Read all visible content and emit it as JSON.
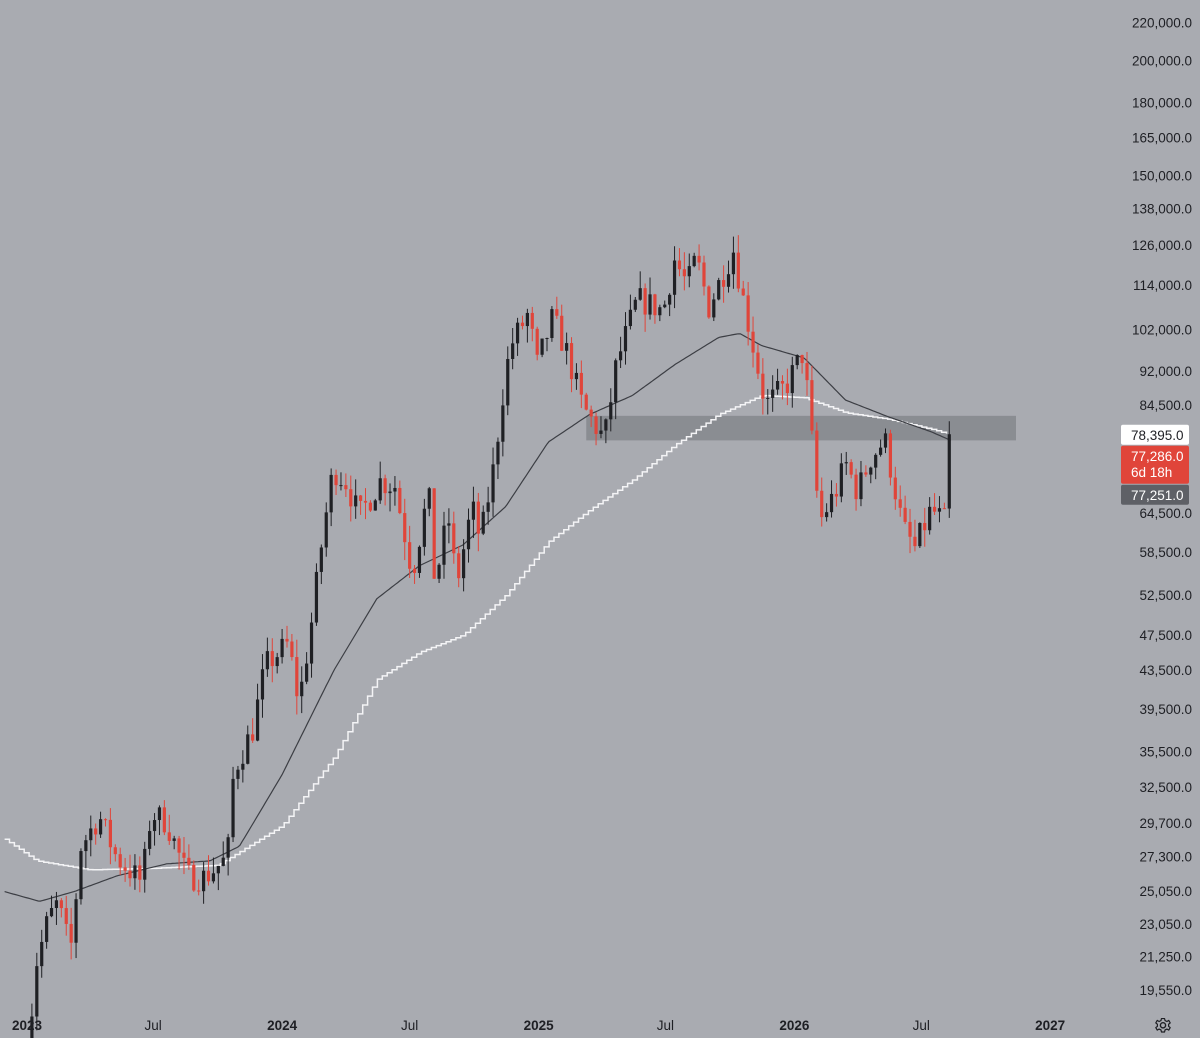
{
  "colors": {
    "background": "#a9abb1",
    "up": "#1f2024",
    "down": "#e0453a",
    "ma_fast": "#3c3e44",
    "ma_slow": "#f4f4f6",
    "zone": "#85878d",
    "tick_text": "#1e1f24",
    "tag_white_bg": "#ffffff",
    "tag_red_bg": "#e0453a",
    "tag_grey_bg": "#5e6066"
  },
  "icons": {
    "settings": "gear-icon"
  },
  "chart_data": {
    "type": "candlestick",
    "scale": "log",
    "ylim": [
      18500,
      228000
    ],
    "x_axis": {
      "start": "2023-01-02",
      "end": "2027-01-15",
      "ticks": [
        {
          "label": "2023",
          "date": "2023-01-02",
          "major": true
        },
        {
          "label": "Jul",
          "date": "2023-07-01",
          "major": false
        },
        {
          "label": "2024",
          "date": "2024-01-01",
          "major": true
        },
        {
          "label": "Jul",
          "date": "2024-07-01",
          "major": false
        },
        {
          "label": "2025",
          "date": "2025-01-01",
          "major": true
        },
        {
          "label": "Jul",
          "date": "2025-07-01",
          "major": false
        },
        {
          "label": "2026",
          "date": "2026-01-01",
          "major": true
        },
        {
          "label": "Jul",
          "date": "2026-07-01",
          "major": false
        },
        {
          "label": "2027",
          "date": "2027-01-01",
          "major": true
        }
      ]
    },
    "y_ticks": [
      "220,000.0",
      "200,000.0",
      "180,000.0",
      "165,000.0",
      "150,000.0",
      "138,000.0",
      "126,000.0",
      "114,000.0",
      "102,000.0",
      "92,000.0",
      "84,500.0",
      "64,500.0",
      "58,500.0",
      "52,500.0",
      "47,500.0",
      "43,500.0",
      "39,500.0",
      "35,500.0",
      "32,500.0",
      "29,700.0",
      "27,300.0",
      "25,050.0",
      "23,050.0",
      "21,250.0",
      "19,550.0"
    ],
    "price_tags": [
      {
        "lines": [
          "78,395.0"
        ],
        "value": 78395,
        "style": "white"
      },
      {
        "lines": [
          "77,286.0",
          "6d 18h"
        ],
        "value": 77286,
        "style": "red"
      },
      {
        "lines": [
          "77,251.0"
        ],
        "value": 69800,
        "style": "grey"
      }
    ],
    "zone": {
      "x_start": "2025-03-10",
      "x_end": "2026-10-10",
      "low": 77300,
      "high": 82200
    },
    "price_anchors": [
      [
        "2023-01-02",
        16600
      ],
      [
        "2023-01-16",
        21000
      ],
      [
        "2023-02-01",
        23300
      ],
      [
        "2023-02-15",
        24300
      ],
      [
        "2023-03-05",
        21500
      ],
      [
        "2023-03-20",
        28000
      ],
      [
        "2023-04-15",
        30200
      ],
      [
        "2023-05-10",
        27200
      ],
      [
        "2023-06-15",
        25600
      ],
      [
        "2023-06-28",
        30400
      ],
      [
        "2023-07-20",
        29800
      ],
      [
        "2023-08-18",
        26000
      ],
      [
        "2023-09-12",
        25900
      ],
      [
        "2023-10-15",
        27200
      ],
      [
        "2023-10-24",
        33800
      ],
      [
        "2023-11-20",
        37500
      ],
      [
        "2023-12-08",
        44000
      ],
      [
        "2024-01-10",
        46500
      ],
      [
        "2024-01-25",
        40100
      ],
      [
        "2024-02-10",
        47700
      ],
      [
        "2024-02-28",
        61000
      ],
      [
        "2024-03-14",
        72000
      ],
      [
        "2024-04-01",
        69700
      ],
      [
        "2024-04-20",
        64000
      ],
      [
        "2024-05-20",
        69800
      ],
      [
        "2024-06-10",
        69000
      ],
      [
        "2024-07-05",
        55500
      ],
      [
        "2024-07-28",
        68000
      ],
      [
        "2024-08-06",
        54000
      ],
      [
        "2024-08-25",
        64000
      ],
      [
        "2024-09-06",
        53900
      ],
      [
        "2024-09-28",
        65500
      ],
      [
        "2024-10-10",
        60200
      ],
      [
        "2024-10-29",
        72300
      ],
      [
        "2024-11-12",
        88000
      ],
      [
        "2024-11-22",
        98000
      ],
      [
        "2024-12-17",
        106000
      ],
      [
        "2024-12-30",
        93300
      ],
      [
        "2025-01-21",
        105000
      ],
      [
        "2025-02-10",
        96500
      ],
      [
        "2025-03-05",
        84000
      ],
      [
        "2025-04-05",
        77500
      ],
      [
        "2025-04-22",
        93500
      ],
      [
        "2025-05-22",
        110000
      ],
      [
        "2025-06-10",
        108500
      ],
      [
        "2025-06-28",
        107000
      ],
      [
        "2025-07-14",
        121500
      ],
      [
        "2025-08-01",
        114000
      ],
      [
        "2025-08-14",
        122000
      ],
      [
        "2025-09-01",
        108000
      ],
      [
        "2025-10-06",
        124500
      ],
      [
        "2025-10-20",
        110000
      ],
      [
        "2025-11-21",
        84500
      ],
      [
        "2025-12-20",
        88500
      ],
      [
        "2026-01-14",
        96500
      ],
      [
        "2026-02-06",
        63000
      ],
      [
        "2026-03-01",
        68000
      ],
      [
        "2026-03-15",
        73000
      ],
      [
        "2026-04-01",
        68000
      ],
      [
        "2026-04-20",
        74000
      ],
      [
        "2026-05-10",
        77500
      ],
      [
        "2026-06-05",
        62000
      ],
      [
        "2026-06-22",
        59000
      ],
      [
        "2026-07-15",
        65000
      ],
      [
        "2026-08-05",
        63000
      ],
      [
        "2026-08-12",
        78500
      ]
    ],
    "ma_fast_anchors": [
      [
        "2022-12-01",
        25000
      ],
      [
        "2023-01-20",
        24400
      ],
      [
        "2023-03-10",
        25000
      ],
      [
        "2023-05-10",
        26000
      ],
      [
        "2023-07-20",
        26800
      ],
      [
        "2023-09-20",
        27000
      ],
      [
        "2023-11-01",
        28000
      ],
      [
        "2024-01-01",
        33500
      ],
      [
        "2024-03-15",
        43500
      ],
      [
        "2024-05-15",
        52000
      ],
      [
        "2024-07-15",
        56500
      ],
      [
        "2024-09-15",
        59500
      ],
      [
        "2024-11-15",
        65500
      ],
      [
        "2025-01-15",
        77000
      ],
      [
        "2025-03-15",
        82500
      ],
      [
        "2025-05-15",
        86500
      ],
      [
        "2025-07-15",
        93500
      ],
      [
        "2025-09-15",
        100000
      ],
      [
        "2025-10-15",
        101000
      ],
      [
        "2025-11-15",
        98000
      ],
      [
        "2026-01-15",
        95000
      ],
      [
        "2026-03-15",
        85500
      ],
      [
        "2026-05-15",
        82000
      ],
      [
        "2026-07-15",
        79000
      ],
      [
        "2026-08-12",
        77300
      ]
    ],
    "ma_slow_anchors": [
      [
        "2022-12-01",
        28500
      ],
      [
        "2023-01-15",
        27000
      ],
      [
        "2023-04-01",
        26400
      ],
      [
        "2023-07-01",
        26500
      ],
      [
        "2023-10-01",
        26700
      ],
      [
        "2024-01-01",
        29500
      ],
      [
        "2024-03-15",
        35000
      ],
      [
        "2024-05-15",
        42500
      ],
      [
        "2024-07-15",
        45500
      ],
      [
        "2024-09-15",
        47500
      ],
      [
        "2024-11-15",
        52500
      ],
      [
        "2025-01-15",
        60000
      ],
      [
        "2025-03-15",
        65000
      ],
      [
        "2025-05-15",
        70000
      ],
      [
        "2025-07-15",
        76500
      ],
      [
        "2025-09-15",
        82500
      ],
      [
        "2025-11-15",
        86500
      ],
      [
        "2026-01-15",
        86000
      ],
      [
        "2026-03-15",
        82800
      ],
      [
        "2026-05-15",
        81500
      ],
      [
        "2026-07-15",
        79500
      ],
      [
        "2026-08-12",
        78395
      ]
    ]
  }
}
